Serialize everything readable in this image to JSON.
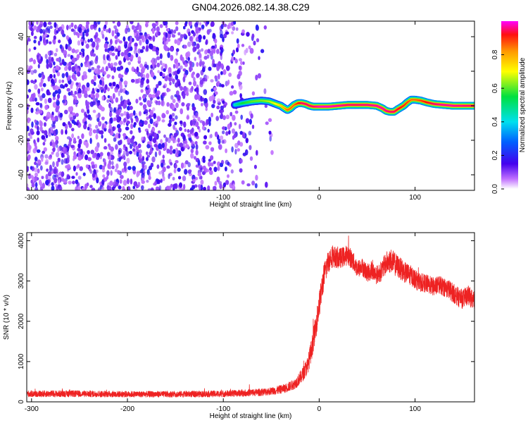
{
  "figure_title": "GN04.2026.082.14.38.C29",
  "chart_data": [
    {
      "type": "heatmap",
      "title": "GN04.2026.082.14.38.C29",
      "xlabel": "Height of straight line (km)",
      "ylabel": "Frequency (Hz)",
      "xlim": [
        -305,
        162
      ],
      "ylim": [
        -49,
        49
      ],
      "xticks": [
        -300,
        -200,
        -100,
        0,
        100
      ],
      "yticks": [
        -40,
        -20,
        0,
        20,
        40
      ],
      "colorbar": {
        "label": "Normalized spectral amplitude",
        "range": [
          0.0,
          1.0
        ],
        "ticks": [
          0.0,
          0.2,
          0.4,
          0.6,
          0.8
        ],
        "tick_labels": [
          "0.0",
          "0.2",
          "0.4",
          "0.6",
          "0.8"
        ],
        "colormap": "rainbow (white-violet-blue-cyan-green-yellow-orange-red-magenta)"
      },
      "noise_region": {
        "x_range": [
          -305,
          -55
        ],
        "sparse_fringe_x": [
          -100,
          -45
        ],
        "amplitude_range": [
          0.05,
          0.3
        ]
      },
      "signal_ridge": {
        "x": [
          -88,
          -80,
          -70,
          -60,
          -52,
          -45,
          -40,
          -36,
          -33,
          -30,
          -26,
          -22,
          -18,
          -14,
          -10,
          -6,
          0,
          10,
          20,
          30,
          40,
          50,
          60,
          66,
          70,
          74,
          78,
          82,
          88,
          92,
          96,
          100,
          106,
          112,
          120,
          130,
          140,
          150,
          162
        ],
        "y": [
          0.5,
          1.5,
          2.5,
          3.0,
          2.5,
          1.0,
          0.0,
          -1.5,
          -2.5,
          -1.5,
          0.5,
          1.5,
          1.5,
          1.0,
          0.0,
          -0.5,
          -0.5,
          -0.5,
          0.0,
          0.5,
          0.5,
          0.5,
          0.0,
          -1.5,
          -3.0,
          -3.5,
          -3.5,
          -2.0,
          0.0,
          2.0,
          3.5,
          3.5,
          3.0,
          2.0,
          1.0,
          0.5,
          0.0,
          0.0,
          0.0
        ],
        "amplitude": [
          0.45,
          0.55,
          0.6,
          0.62,
          0.65,
          0.7,
          0.75,
          0.8,
          0.85,
          0.85,
          0.85,
          0.9,
          0.95,
          0.95,
          0.95,
          0.95,
          0.98,
          0.98,
          0.97,
          0.95,
          0.95,
          0.96,
          0.97,
          0.97,
          0.96,
          0.95,
          0.95,
          0.93,
          0.9,
          0.88,
          0.85,
          0.85,
          0.88,
          0.92,
          0.95,
          0.97,
          0.97,
          0.96,
          0.95
        ]
      }
    },
    {
      "type": "line",
      "xlabel": "Height of straight line (km)",
      "ylabel": "SNR (10 * v/v)",
      "xlim": [
        -305,
        162
      ],
      "ylim": [
        0,
        4200
      ],
      "xticks": [
        -300,
        -200,
        -100,
        0,
        100
      ],
      "yticks": [
        0,
        1000,
        2000,
        3000,
        4000
      ],
      "color": "#ee2222",
      "series": [
        {
          "x": [
            -305,
            -250,
            -200,
            -150,
            -100,
            -80,
            -60,
            -45,
            -35,
            -25,
            -18,
            -12,
            -8,
            -4,
            0,
            4,
            8,
            12,
            16,
            20,
            25,
            30,
            35,
            40,
            45,
            50,
            55,
            60,
            65,
            70,
            75,
            80,
            85,
            90,
            95,
            100,
            105,
            110,
            115,
            120,
            125,
            130,
            135,
            140,
            145,
            150,
            155,
            162
          ],
          "y": [
            200,
            200,
            190,
            190,
            200,
            220,
            240,
            280,
            340,
            450,
            650,
            900,
            1300,
            1800,
            2400,
            3000,
            3400,
            3600,
            3600,
            3550,
            3600,
            3650,
            3500,
            3300,
            3350,
            3200,
            3250,
            3150,
            3250,
            3450,
            3500,
            3400,
            3300,
            3200,
            3150,
            3050,
            2950,
            2950,
            2900,
            2850,
            2900,
            2850,
            2800,
            2700,
            2600,
            2550,
            2650,
            2500
          ],
          "noise_amplitude": [
            80,
            80,
            75,
            75,
            80,
            85,
            90,
            100,
            110,
            130,
            170,
            220,
            270,
            300,
            330,
            330,
            300,
            280,
            260,
            250,
            250,
            250,
            240,
            230,
            220,
            220,
            230,
            230,
            250,
            280,
            300,
            290,
            270,
            260,
            250,
            240,
            230,
            230,
            230,
            230,
            230,
            230,
            240,
            240,
            240,
            240,
            240,
            240
          ]
        }
      ]
    }
  ]
}
